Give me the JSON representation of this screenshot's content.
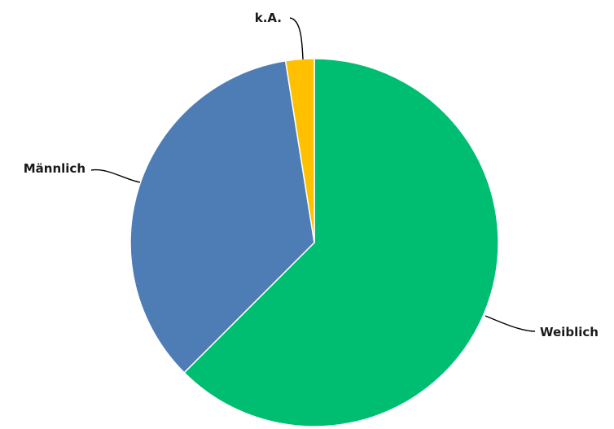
{
  "chart_data": {
    "type": "pie",
    "start_angle_deg": 0,
    "direction": "clockwise",
    "slices": [
      {
        "label": "Weiblich",
        "value": 62.5,
        "color": "#00BE71"
      },
      {
        "label": "Männlich",
        "value": 35.0,
        "color": "#4E7DB5"
      },
      {
        "label": "k.A.",
        "value": 2.5,
        "color": "#FFC000"
      }
    ]
  }
}
